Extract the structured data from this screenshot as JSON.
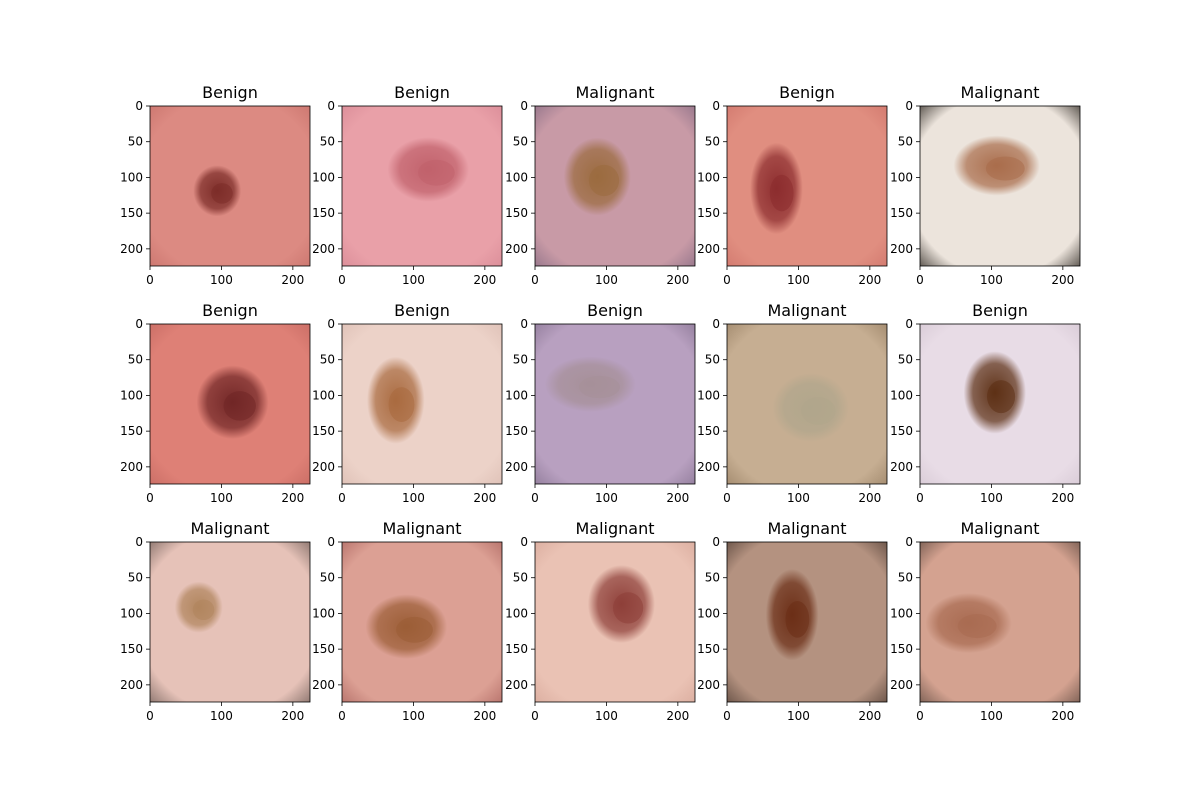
{
  "figure": {
    "image_extent": [
      0,
      224
    ],
    "x_ticks": [
      "0",
      "100",
      "200"
    ],
    "y_ticks": [
      "0",
      "50",
      "100",
      "150",
      "200"
    ],
    "panels": [
      {
        "title": "Benign",
        "skin": "#dc8a82",
        "lesion": "#7a2a26",
        "bg_edge": "#c9736c"
      },
      {
        "title": "Benign",
        "skin": "#e9a0a8",
        "lesion": "#c0606a",
        "bg_edge": "#d88a96"
      },
      {
        "title": "Malignant",
        "skin": "#c89aa6",
        "lesion": "#9a6a3c",
        "bg_edge": "#8c6f86"
      },
      {
        "title": "Benign",
        "skin": "#e08e80",
        "lesion": "#8a2a2c",
        "bg_edge": "#d0766c"
      },
      {
        "title": "Malignant",
        "skin": "#ece4dc",
        "lesion": "#a86a48",
        "bg_edge": "#3a342e"
      },
      {
        "title": "Benign",
        "skin": "#de8076",
        "lesion": "#6e2424",
        "bg_edge": "#c66a62"
      },
      {
        "title": "Benign",
        "skin": "#ecd2c8",
        "lesion": "#a8683c",
        "bg_edge": "#dcbeb4"
      },
      {
        "title": "Benign",
        "skin": "#b8a0c0",
        "lesion": "#a69098",
        "bg_edge": "#8c7896"
      },
      {
        "title": "Malignant",
        "skin": "#c6ae92",
        "lesion": "#b0a68c",
        "bg_edge": "#9c8468"
      },
      {
        "title": "Benign",
        "skin": "#e8dce6",
        "lesion": "#5a2c10",
        "bg_edge": "#d6c8d4"
      },
      {
        "title": "Malignant",
        "skin": "#e6c2b8",
        "lesion": "#b0845c",
        "bg_edge": "#7a6660"
      },
      {
        "title": "Malignant",
        "skin": "#dca094",
        "lesion": "#9a5c34",
        "bg_edge": "#b06a64"
      },
      {
        "title": "Malignant",
        "skin": "#eac2b4",
        "lesion": "#8c3c36",
        "bg_edge": "#d8aa9c"
      },
      {
        "title": "Malignant",
        "skin": "#b49280",
        "lesion": "#6a2c14",
        "bg_edge": "#5a463c"
      },
      {
        "title": "Malignant",
        "skin": "#d4a290",
        "lesion": "#a86a50",
        "bg_edge": "#6a5248"
      }
    ]
  }
}
